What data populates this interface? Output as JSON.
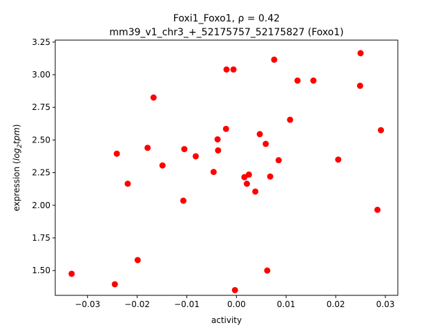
{
  "chart_data": {
    "type": "scatter",
    "title_line1": "Foxi1_Foxo1, ρ = 0.42",
    "title_line2": "mm39_v1_chr3_+_52175757_52175827 (Foxo1)",
    "xlabel": "activity",
    "ylabel_prefix": "expression (",
    "ylabel_math": "log",
    "ylabel_sub": "2",
    "ylabel_math_tail": "tpm",
    "ylabel_suffix": ")",
    "xlim": [
      -0.0365,
      0.0325
    ],
    "ylim": [
      1.31,
      3.265
    ],
    "xticks": [
      {
        "value": -0.03,
        "label": "−0.03"
      },
      {
        "value": -0.02,
        "label": "−0.02"
      },
      {
        "value": -0.01,
        "label": "−0.01"
      },
      {
        "value": 0.0,
        "label": "0.00"
      },
      {
        "value": 0.01,
        "label": "0.01"
      },
      {
        "value": 0.02,
        "label": "0.02"
      },
      {
        "value": 0.03,
        "label": "0.03"
      }
    ],
    "yticks": [
      {
        "value": 1.5,
        "label": "1.50"
      },
      {
        "value": 1.75,
        "label": "1.75"
      },
      {
        "value": 2.0,
        "label": "2.00"
      },
      {
        "value": 2.25,
        "label": "2.25"
      },
      {
        "value": 2.5,
        "label": "2.50"
      },
      {
        "value": 2.75,
        "label": "2.75"
      },
      {
        "value": 3.0,
        "label": "3.00"
      },
      {
        "value": 3.25,
        "label": "3.25"
      }
    ],
    "grid": false,
    "marker_color": "#ff0000",
    "points": [
      {
        "x": -0.0332,
        "y": 1.475
      },
      {
        "x": -0.0245,
        "y": 1.395
      },
      {
        "x": -0.0241,
        "y": 2.395
      },
      {
        "x": -0.0219,
        "y": 2.165
      },
      {
        "x": -0.0199,
        "y": 1.58
      },
      {
        "x": -0.0179,
        "y": 2.44
      },
      {
        "x": -0.0167,
        "y": 2.825
      },
      {
        "x": -0.0149,
        "y": 2.305
      },
      {
        "x": -0.0107,
        "y": 2.035
      },
      {
        "x": -0.0105,
        "y": 2.43
      },
      {
        "x": -0.0082,
        "y": 2.375
      },
      {
        "x": -0.0046,
        "y": 2.255
      },
      {
        "x": -0.0038,
        "y": 2.505
      },
      {
        "x": -0.0037,
        "y": 2.42
      },
      {
        "x": -0.0021,
        "y": 2.585
      },
      {
        "x": -0.002,
        "y": 3.04
      },
      {
        "x": -0.0006,
        "y": 3.04
      },
      {
        "x": -0.0003,
        "y": 1.35
      },
      {
        "x": 0.0016,
        "y": 2.215
      },
      {
        "x": 0.0021,
        "y": 2.165
      },
      {
        "x": 0.0025,
        "y": 2.235
      },
      {
        "x": 0.0038,
        "y": 2.105
      },
      {
        "x": 0.0047,
        "y": 2.545
      },
      {
        "x": 0.0059,
        "y": 2.47
      },
      {
        "x": 0.0062,
        "y": 1.5
      },
      {
        "x": 0.0068,
        "y": 2.22
      },
      {
        "x": 0.0076,
        "y": 3.115
      },
      {
        "x": 0.0085,
        "y": 2.345
      },
      {
        "x": 0.0108,
        "y": 2.655
      },
      {
        "x": 0.0123,
        "y": 2.955
      },
      {
        "x": 0.0155,
        "y": 2.955
      },
      {
        "x": 0.0205,
        "y": 2.35
      },
      {
        "x": 0.0249,
        "y": 2.915
      },
      {
        "x": 0.025,
        "y": 3.165
      },
      {
        "x": 0.0284,
        "y": 1.965
      },
      {
        "x": 0.0291,
        "y": 2.575
      }
    ]
  }
}
